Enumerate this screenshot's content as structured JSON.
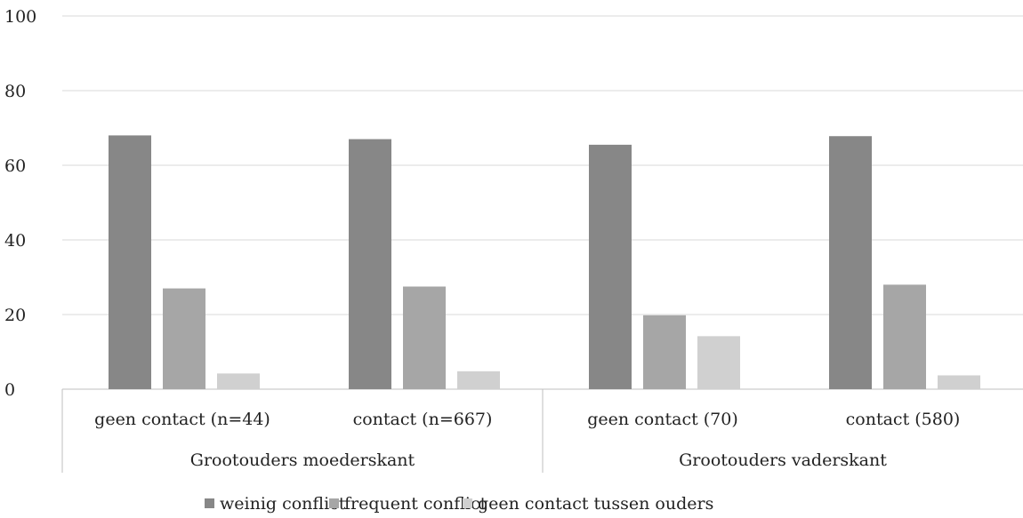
{
  "chart_data": {
    "type": "bar",
    "title": "",
    "xlabel": "",
    "ylabel": "",
    "ylim": [
      0,
      100
    ],
    "yticks": [
      0,
      20,
      40,
      60,
      80,
      100
    ],
    "grid": true,
    "legend_position": "bottom",
    "groups": [
      {
        "label": "Grootouders moederskant",
        "categories": [
          "geen contact (n=44)",
          "contact (n=667)"
        ]
      },
      {
        "label": "Grootouders vaderskant",
        "categories": [
          "geen contact (70)",
          "contact (580)"
        ]
      }
    ],
    "categories": [
      "geen contact (n=44)",
      "contact (n=667)",
      "geen contact (70)",
      "contact (580)"
    ],
    "series": [
      {
        "name": "weinig conflict",
        "color": "#878787",
        "values": [
          68,
          67,
          65.5,
          67.8
        ]
      },
      {
        "name": "frequent conflict",
        "color": "#a6a6a6",
        "values": [
          27,
          27.5,
          19.8,
          28
        ]
      },
      {
        "name": "geen contact tussen ouders",
        "color": "#d0d0d0",
        "values": [
          4.2,
          4.8,
          14.2,
          3.7
        ]
      }
    ]
  }
}
